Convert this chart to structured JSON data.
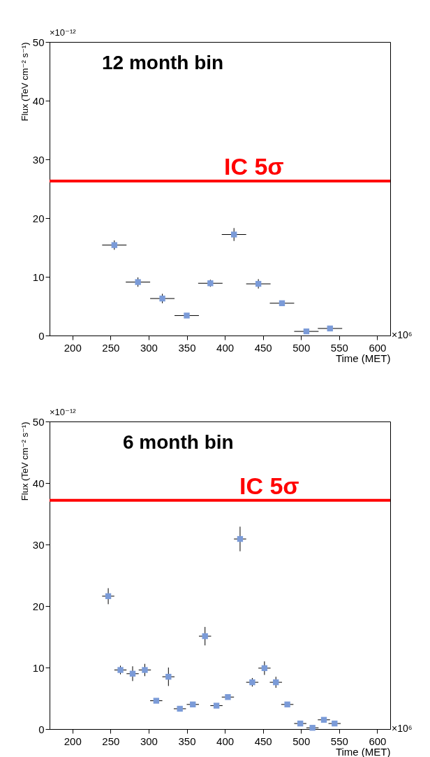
{
  "chart_data": [
    {
      "type": "scatter",
      "xlabel": "Time (MET)",
      "ylabel": "Flux (TeV cm⁻² s⁻¹)",
      "annotations": [
        "12 month bin",
        "×10⁻¹²",
        "×10⁶"
      ],
      "color": "#7b9bd8",
      "marker": "square",
      "x": [
        255,
        286,
        318,
        350,
        381,
        412,
        444,
        475,
        507,
        538
      ],
      "values": [
        15.4,
        9.1,
        6.3,
        3.4,
        8.9,
        17.2,
        8.8,
        5.5,
        0.7,
        1.2
      ],
      "errors": [
        0.8,
        0.8,
        0.8,
        null,
        0.6,
        1.1,
        0.8,
        null,
        null,
        null
      ],
      "xerrors": [
        16,
        16,
        16,
        16,
        16,
        16,
        16,
        16,
        16,
        16
      ],
      "xlim": [
        170,
        617
      ],
      "ylim": [
        0,
        50
      ],
      "xticks": [
        200,
        250,
        300,
        350,
        400,
        450,
        500,
        550,
        600
      ],
      "yticks": [
        0,
        10,
        20,
        30,
        40,
        50
      ],
      "ref_lines": [
        {
          "axis": "y",
          "value": 26.3,
          "label": "IC 5σ",
          "color": "#ff0000"
        }
      ]
    },
    {
      "type": "scatter",
      "xlabel": "Time (MET)",
      "ylabel": "Flux (TeV cm⁻² s⁻¹)",
      "annotations": [
        "6 month bin",
        "×10⁻¹²",
        "×10⁶"
      ],
      "color": "#7b9bd8",
      "marker": "square",
      "x": [
        247,
        263,
        279,
        295,
        310,
        326,
        341,
        358,
        374,
        389,
        404,
        420,
        436,
        452,
        467,
        482,
        499,
        515,
        530,
        544
      ],
      "values": [
        21.6,
        9.6,
        9.0,
        9.6,
        4.6,
        8.5,
        3.3,
        4.0,
        15.1,
        3.8,
        5.2,
        30.9,
        7.6,
        9.9,
        7.6,
        4.0,
        0.9,
        0.2,
        1.5,
        0.9
      ],
      "errors": [
        1.3,
        0.7,
        1.2,
        1.0,
        null,
        1.5,
        null,
        null,
        1.5,
        null,
        null,
        2.0,
        0.7,
        1.1,
        0.9,
        null,
        null,
        null,
        null,
        null
      ],
      "xerrors": [
        8,
        8,
        8,
        8,
        8,
        8,
        8,
        8,
        8,
        8,
        8,
        8,
        8,
        8,
        8,
        8,
        8,
        8,
        8,
        8
      ],
      "xlim": [
        170,
        617
      ],
      "ylim": [
        0,
        50
      ],
      "xticks": [
        200,
        250,
        300,
        350,
        400,
        450,
        500,
        550,
        600
      ],
      "yticks": [
        0,
        10,
        20,
        30,
        40,
        50
      ],
      "ref_lines": [
        {
          "axis": "y",
          "value": 37.2,
          "label": "IC 5σ",
          "color": "#ff0000"
        }
      ]
    }
  ]
}
